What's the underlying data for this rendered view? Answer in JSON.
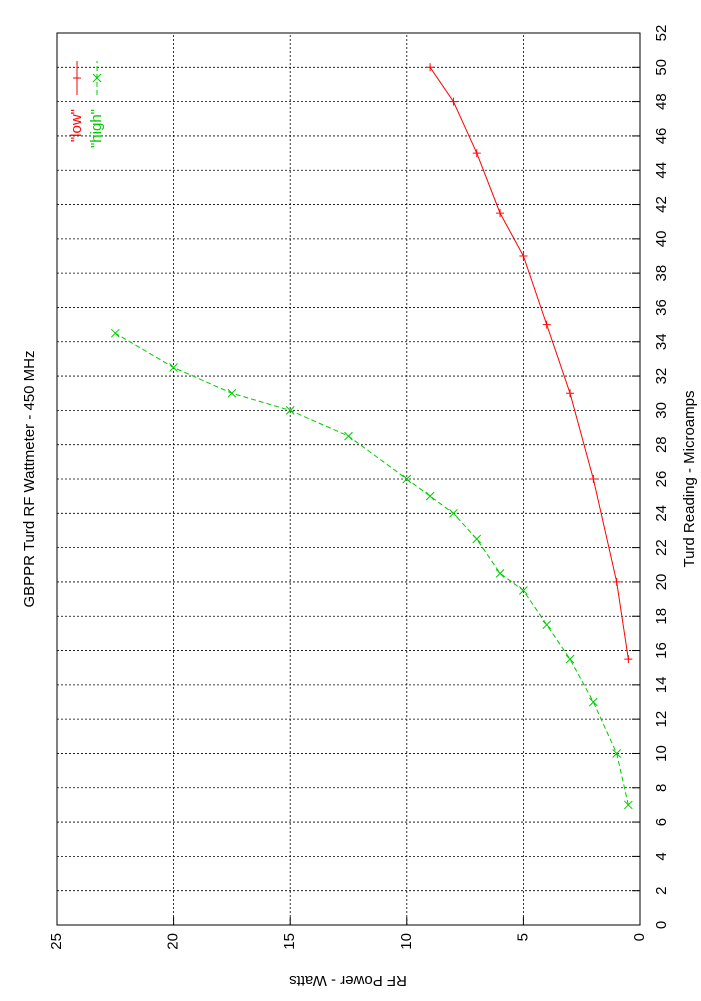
{
  "chart_data": {
    "type": "line",
    "title": "GBPPR Turd RF Wattmeter  -  450 MHz",
    "x_label": "Turd Reading  -  Microamps",
    "y_label": "RF Power  -  Watts",
    "xlim": [
      0,
      52
    ],
    "xticks": [
      0,
      2,
      4,
      6,
      8,
      10,
      12,
      14,
      16,
      18,
      20,
      22,
      24,
      26,
      28,
      30,
      32,
      34,
      36,
      38,
      40,
      42,
      44,
      46,
      48,
      50,
      52
    ],
    "ylim": [
      0,
      25
    ],
    "yticks": [
      0,
      5,
      10,
      15,
      20,
      25
    ],
    "grid": true,
    "legend": "top right",
    "rotated": true,
    "series": [
      {
        "name": "\"low\"",
        "color": "#ff0000",
        "marker": "+",
        "x": [
          15.5,
          20,
          26,
          31,
          35,
          39,
          41.5,
          45,
          48,
          50
        ],
        "values": [
          0.5,
          1,
          2,
          3,
          4,
          5,
          6,
          7,
          8,
          9
        ]
      },
      {
        "name": "\"high\"",
        "color": "#00cc00",
        "marker": "x",
        "dashed": true,
        "x": [
          7,
          10,
          13,
          15.5,
          17.5,
          19.5,
          20.5,
          22.5,
          24,
          25,
          26,
          28.5,
          30,
          31,
          32.5,
          34.5
        ],
        "values": [
          0.5,
          1,
          2,
          3,
          4,
          5,
          6,
          7,
          8,
          9,
          10,
          12.5,
          15,
          17.5,
          20,
          22.5
        ]
      }
    ]
  }
}
